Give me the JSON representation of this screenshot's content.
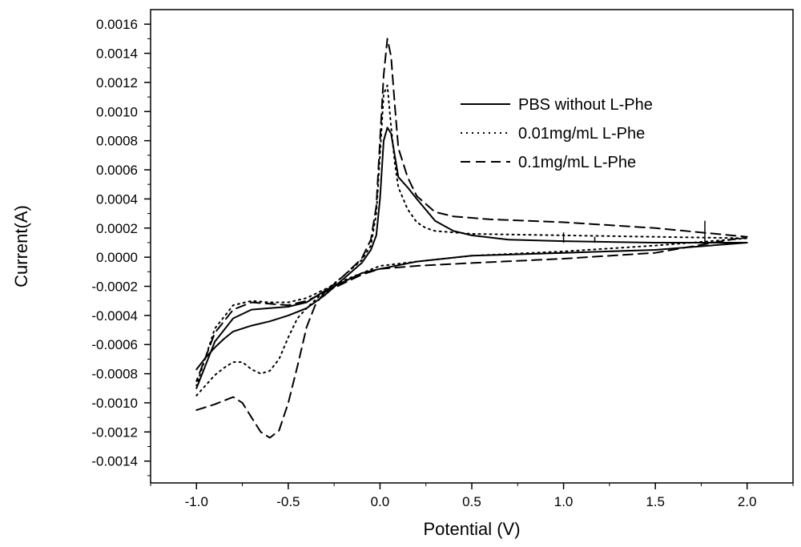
{
  "chart_data": {
    "type": "line",
    "xlabel": "Potential (V)",
    "ylabel": "Current(A)",
    "xlim": [
      -1.25,
      2.25
    ],
    "ylim": [
      -0.00155,
      0.0017
    ],
    "x_ticks": [
      -1.0,
      -0.5,
      0.0,
      0.5,
      1.0,
      1.5,
      2.0
    ],
    "x_tick_labels": [
      "-1.0",
      "-0.5",
      "0.0",
      "0.5",
      "1.0",
      "1.5",
      "2.0"
    ],
    "y_ticks": [
      -0.0014,
      -0.0012,
      -0.001,
      -0.0008,
      -0.0006,
      -0.0004,
      -0.0002,
      0.0,
      0.0002,
      0.0004,
      0.0006,
      0.0008,
      0.001,
      0.0012,
      0.0014,
      0.0016
    ],
    "y_tick_labels": [
      "-0.0014",
      "-0.0012",
      "-0.0010",
      "-0.0008",
      "-0.0006",
      "-0.0004",
      "-0.0002",
      "0.0000",
      "0.0002",
      "0.0004",
      "0.0006",
      "0.0008",
      "0.0010",
      "0.0012",
      "0.0014",
      "0.0016"
    ],
    "grid": false,
    "legend_position": "top-right",
    "series": [
      {
        "name": "PBS without L-Phe",
        "style": "solid",
        "color": "#000000",
        "points": [
          [
            -1.0,
            -0.00077
          ],
          [
            -0.95,
            -0.00069
          ],
          [
            -0.9,
            -0.00062
          ],
          [
            -0.85,
            -0.00056
          ],
          [
            -0.8,
            -0.00051
          ],
          [
            -0.7,
            -0.00047
          ],
          [
            -0.6,
            -0.00044
          ],
          [
            -0.5,
            -0.0004
          ],
          [
            -0.4,
            -0.00035
          ],
          [
            -0.3,
            -0.00026
          ],
          [
            -0.2,
            -0.00015
          ],
          [
            -0.1,
            -4e-05
          ],
          [
            -0.05,
            5e-05
          ],
          [
            -0.02,
            0.00015
          ],
          [
            0.0,
            0.0004
          ],
          [
            0.02,
            0.0008
          ],
          [
            0.04,
            0.00089
          ],
          [
            0.06,
            0.00085
          ],
          [
            0.08,
            0.0007
          ],
          [
            0.1,
            0.00055
          ],
          [
            0.15,
            0.00048
          ],
          [
            0.2,
            0.0004
          ],
          [
            0.3,
            0.00025
          ],
          [
            0.4,
            0.00018
          ],
          [
            0.5,
            0.00015
          ],
          [
            0.7,
            0.00012
          ],
          [
            1.0,
            0.00011
          ],
          [
            1.5,
            0.0001
          ],
          [
            2.0,
            0.0001
          ],
          [
            1.5,
            5e-05
          ],
          [
            1.0,
            3e-05
          ],
          [
            0.5,
            1e-05
          ],
          [
            0.2,
            -3e-05
          ],
          [
            0.0,
            -8e-05
          ],
          [
            -0.1,
            -0.00011
          ],
          [
            -0.2,
            -0.00017
          ],
          [
            -0.3,
            -0.00023
          ],
          [
            -0.4,
            -0.00031
          ],
          [
            -0.5,
            -0.00034
          ],
          [
            -0.6,
            -0.00035
          ],
          [
            -0.7,
            -0.00036
          ],
          [
            -0.8,
            -0.00042
          ],
          [
            -0.9,
            -0.00058
          ],
          [
            -1.0,
            -0.0009
          ]
        ]
      },
      {
        "name": "0.01mg/mL L-Phe",
        "style": "dotted",
        "color": "#000000",
        "points": [
          [
            -1.0,
            -0.00095
          ],
          [
            -0.95,
            -0.00088
          ],
          [
            -0.9,
            -0.00081
          ],
          [
            -0.85,
            -0.00076
          ],
          [
            -0.8,
            -0.00072
          ],
          [
            -0.75,
            -0.00072
          ],
          [
            -0.7,
            -0.00077
          ],
          [
            -0.65,
            -0.0008
          ],
          [
            -0.6,
            -0.00078
          ],
          [
            -0.55,
            -0.0007
          ],
          [
            -0.5,
            -0.00055
          ],
          [
            -0.45,
            -0.00042
          ],
          [
            -0.4,
            -0.00035
          ],
          [
            -0.3,
            -0.00023
          ],
          [
            -0.2,
            -0.00013
          ],
          [
            -0.1,
            -2e-05
          ],
          [
            -0.05,
            8e-05
          ],
          [
            -0.02,
            0.0003
          ],
          [
            0.0,
            0.0007
          ],
          [
            0.02,
            0.00112
          ],
          [
            0.04,
            0.00118
          ],
          [
            0.06,
            0.0009
          ],
          [
            0.08,
            0.00065
          ],
          [
            0.1,
            0.00048
          ],
          [
            0.15,
            0.00033
          ],
          [
            0.2,
            0.00024
          ],
          [
            0.25,
            0.0002
          ],
          [
            0.3,
            0.00018
          ],
          [
            0.5,
            0.00016
          ],
          [
            1.0,
            0.00015
          ],
          [
            1.5,
            0.00014
          ],
          [
            2.0,
            0.00013
          ],
          [
            1.5,
            8e-05
          ],
          [
            1.0,
            4e-05
          ],
          [
            0.5,
            1e-05
          ],
          [
            0.2,
            -3e-05
          ],
          [
            0.0,
            -6e-05
          ],
          [
            -0.1,
            -0.00011
          ],
          [
            -0.2,
            -0.00016
          ],
          [
            -0.3,
            -0.00022
          ],
          [
            -0.4,
            -0.00028
          ],
          [
            -0.5,
            -0.00031
          ],
          [
            -0.6,
            -0.00031
          ],
          [
            -0.7,
            -0.0003
          ],
          [
            -0.8,
            -0.00033
          ],
          [
            -0.9,
            -0.00049
          ],
          [
            -1.0,
            -0.00088
          ]
        ]
      },
      {
        "name": "0.1mg/mL L-Phe",
        "style": "dashed",
        "color": "#000000",
        "points": [
          [
            -1.0,
            -0.00105
          ],
          [
            -0.9,
            -0.00101
          ],
          [
            -0.8,
            -0.00096
          ],
          [
            -0.75,
            -0.001
          ],
          [
            -0.7,
            -0.0011
          ],
          [
            -0.65,
            -0.0012
          ],
          [
            -0.6,
            -0.00124
          ],
          [
            -0.55,
            -0.00119
          ],
          [
            -0.5,
            -0.001
          ],
          [
            -0.45,
            -0.00075
          ],
          [
            -0.4,
            -0.00048
          ],
          [
            -0.35,
            -0.00032
          ],
          [
            -0.3,
            -0.00024
          ],
          [
            -0.2,
            -0.00013
          ],
          [
            -0.1,
            -1e-05
          ],
          [
            -0.05,
            0.00012
          ],
          [
            -0.02,
            0.00035
          ],
          [
            0.0,
            0.0008
          ],
          [
            0.02,
            0.00125
          ],
          [
            0.04,
            0.0015
          ],
          [
            0.06,
            0.00138
          ],
          [
            0.08,
            0.00105
          ],
          [
            0.1,
            0.00075
          ],
          [
            0.15,
            0.00055
          ],
          [
            0.2,
            0.00042
          ],
          [
            0.3,
            0.00031
          ],
          [
            0.4,
            0.00028
          ],
          [
            0.6,
            0.00026
          ],
          [
            1.0,
            0.00024
          ],
          [
            1.5,
            0.0002
          ],
          [
            2.0,
            0.00014
          ],
          [
            1.5,
            3e-05
          ],
          [
            1.0,
            -1e-05
          ],
          [
            0.5,
            -4e-05
          ],
          [
            0.2,
            -6e-05
          ],
          [
            0.0,
            -8e-05
          ],
          [
            -0.1,
            -0.00012
          ],
          [
            -0.2,
            -0.00018
          ],
          [
            -0.3,
            -0.00024
          ],
          [
            -0.4,
            -0.0003
          ],
          [
            -0.5,
            -0.00033
          ],
          [
            -0.6,
            -0.00032
          ],
          [
            -0.7,
            -0.00031
          ],
          [
            -0.8,
            -0.00036
          ],
          [
            -0.9,
            -0.00052
          ],
          [
            -1.0,
            -0.00085
          ]
        ]
      }
    ],
    "annotations": {
      "solid_spikes": [
        [
          1.0,
          0.00017
        ],
        [
          1.17,
          0.00014
        ],
        [
          1.77,
          0.00025
        ]
      ]
    }
  }
}
